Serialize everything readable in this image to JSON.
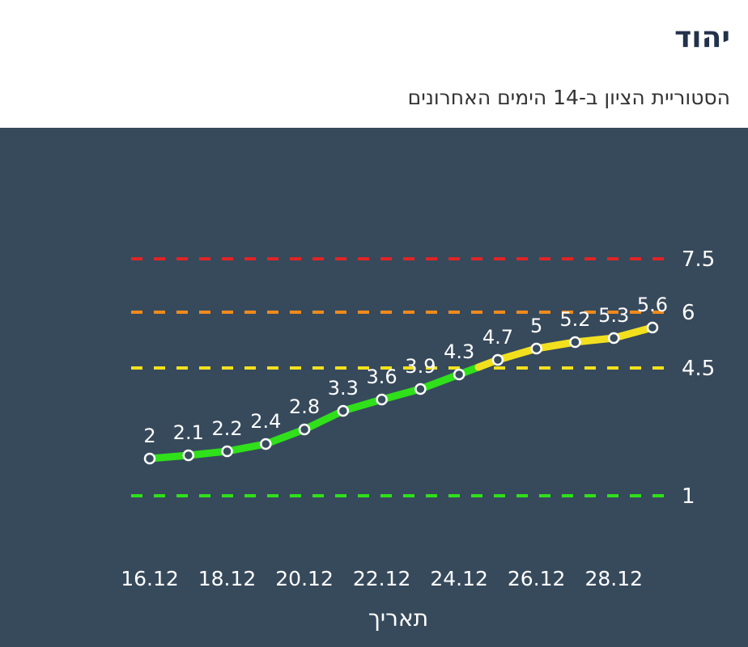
{
  "header": {
    "title": "יהוד",
    "subtitle": "הסטוריית הציון ב-14 הימים האחרונים"
  },
  "colors": {
    "panel_bg": "#374a5c",
    "red": "#e02424",
    "orange": "#f08a1c",
    "yellow": "#f2e01e",
    "green": "#2fe01a",
    "text": "#ffffff"
  },
  "chart_data": {
    "type": "line",
    "xlabel": "תאריך",
    "ylabel": "",
    "ylim": [
      1,
      7.5
    ],
    "x_tick_labels": [
      "16.12",
      "18.12",
      "20.12",
      "22.12",
      "24.12",
      "26.12",
      "28.12"
    ],
    "x": [
      "16.12",
      "17.12",
      "18.12",
      "19.12",
      "20.12",
      "21.12",
      "22.12",
      "23.12",
      "24.12",
      "25.12",
      "26.12",
      "27.12",
      "28.12",
      "29.12"
    ],
    "series": [
      {
        "values": [
          2,
          2.1,
          2.2,
          2.4,
          2.8,
          3.3,
          3.6,
          3.9,
          4.3,
          4.7,
          5,
          5.2,
          5.3,
          5.6
        ]
      }
    ],
    "thresholds": [
      {
        "value": 7.5,
        "label": "7.5",
        "color": "#e02424"
      },
      {
        "value": 6,
        "label": "6",
        "color": "#f08a1c"
      },
      {
        "value": 4.5,
        "label": "4.5",
        "color": "#f2e01e"
      },
      {
        "value": 1,
        "label": "1",
        "color": "#2fe01a"
      }
    ],
    "line_color_rule": "green below 4.5, yellow from 4.5 to 6",
    "grid": false
  }
}
